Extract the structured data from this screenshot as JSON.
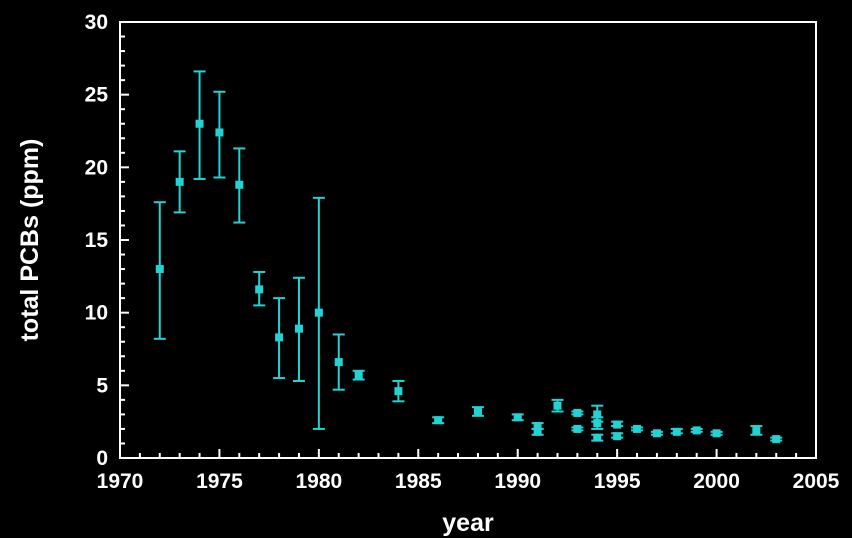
{
  "chart_data": {
    "type": "scatter",
    "xlabel": "year",
    "ylabel": "total PCBs (ppm)",
    "xlim": [
      1970,
      2005
    ],
    "ylim": [
      0,
      30
    ],
    "x_ticks": [
      "1970",
      "1975",
      "1980",
      "1985",
      "1990",
      "1995",
      "2000",
      "2005"
    ],
    "y_ticks": [
      "0",
      "5",
      "10",
      "15",
      "20",
      "25",
      "30"
    ],
    "grid": false,
    "marker": "square",
    "color": "#22d3d3",
    "points": [
      {
        "x": 1972,
        "y": 13.0,
        "err_low": 8.2,
        "err_high": 17.6
      },
      {
        "x": 1973,
        "y": 19.0,
        "err_low": 16.9,
        "err_high": 21.1
      },
      {
        "x": 1974,
        "y": 23.0,
        "err_low": 19.2,
        "err_high": 26.6
      },
      {
        "x": 1975,
        "y": 22.4,
        "err_low": 19.3,
        "err_high": 25.2
      },
      {
        "x": 1976,
        "y": 18.8,
        "err_low": 16.2,
        "err_high": 21.3
      },
      {
        "x": 1977,
        "y": 11.6,
        "err_low": 10.5,
        "err_high": 12.8
      },
      {
        "x": 1978,
        "y": 8.3,
        "err_low": 5.5,
        "err_high": 11.0
      },
      {
        "x": 1979,
        "y": 8.9,
        "err_low": 5.3,
        "err_high": 12.4
      },
      {
        "x": 1980,
        "y": 10.0,
        "err_low": 2.0,
        "err_high": 17.9
      },
      {
        "x": 1981,
        "y": 6.6,
        "err_low": 4.7,
        "err_high": 8.5
      },
      {
        "x": 1982,
        "y": 5.7,
        "err_low": 5.4,
        "err_high": 6.0
      },
      {
        "x": 1984,
        "y": 4.6,
        "err_low": 3.9,
        "err_high": 5.3
      },
      {
        "x": 1986,
        "y": 2.6,
        "err_low": 2.4,
        "err_high": 2.8
      },
      {
        "x": 1988,
        "y": 3.2,
        "err_low": 2.9,
        "err_high": 3.5
      },
      {
        "x": 1990,
        "y": 2.8,
        "err_low": 2.6,
        "err_high": 3.0
      },
      {
        "x": 1991,
        "y": 2.2,
        "err_low": 2.0,
        "err_high": 2.4
      },
      {
        "x": 1991,
        "y": 1.8,
        "err_low": 1.6,
        "err_high": 2.0
      },
      {
        "x": 1992,
        "y": 3.6,
        "err_low": 3.2,
        "err_high": 4.0
      },
      {
        "x": 1993,
        "y": 3.1,
        "err_low": 3.0,
        "err_high": 3.2
      },
      {
        "x": 1993,
        "y": 2.0,
        "err_low": 1.9,
        "err_high": 2.1
      },
      {
        "x": 1994,
        "y": 3.0,
        "err_low": 2.5,
        "err_high": 3.6
      },
      {
        "x": 1994,
        "y": 2.4,
        "err_low": 2.0,
        "err_high": 2.8
      },
      {
        "x": 1994,
        "y": 1.4,
        "err_low": 1.2,
        "err_high": 1.6
      },
      {
        "x": 1995,
        "y": 2.3,
        "err_low": 2.2,
        "err_high": 2.5
      },
      {
        "x": 1995,
        "y": 1.5,
        "err_low": 1.4,
        "err_high": 1.7
      },
      {
        "x": 1996,
        "y": 2.0,
        "err_low": 1.9,
        "err_high": 2.1
      },
      {
        "x": 1997,
        "y": 1.7,
        "err_low": 1.6,
        "err_high": 1.8
      },
      {
        "x": 1998,
        "y": 1.8,
        "err_low": 1.7,
        "err_high": 2.0
      },
      {
        "x": 1999,
        "y": 1.9,
        "err_low": 1.8,
        "err_high": 2.0
      },
      {
        "x": 2000,
        "y": 1.7,
        "err_low": 1.6,
        "err_high": 1.8
      },
      {
        "x": 2002,
        "y": 1.9,
        "err_low": 1.6,
        "err_high": 2.2
      },
      {
        "x": 2003,
        "y": 1.3,
        "err_low": 1.2,
        "err_high": 1.4
      }
    ]
  }
}
